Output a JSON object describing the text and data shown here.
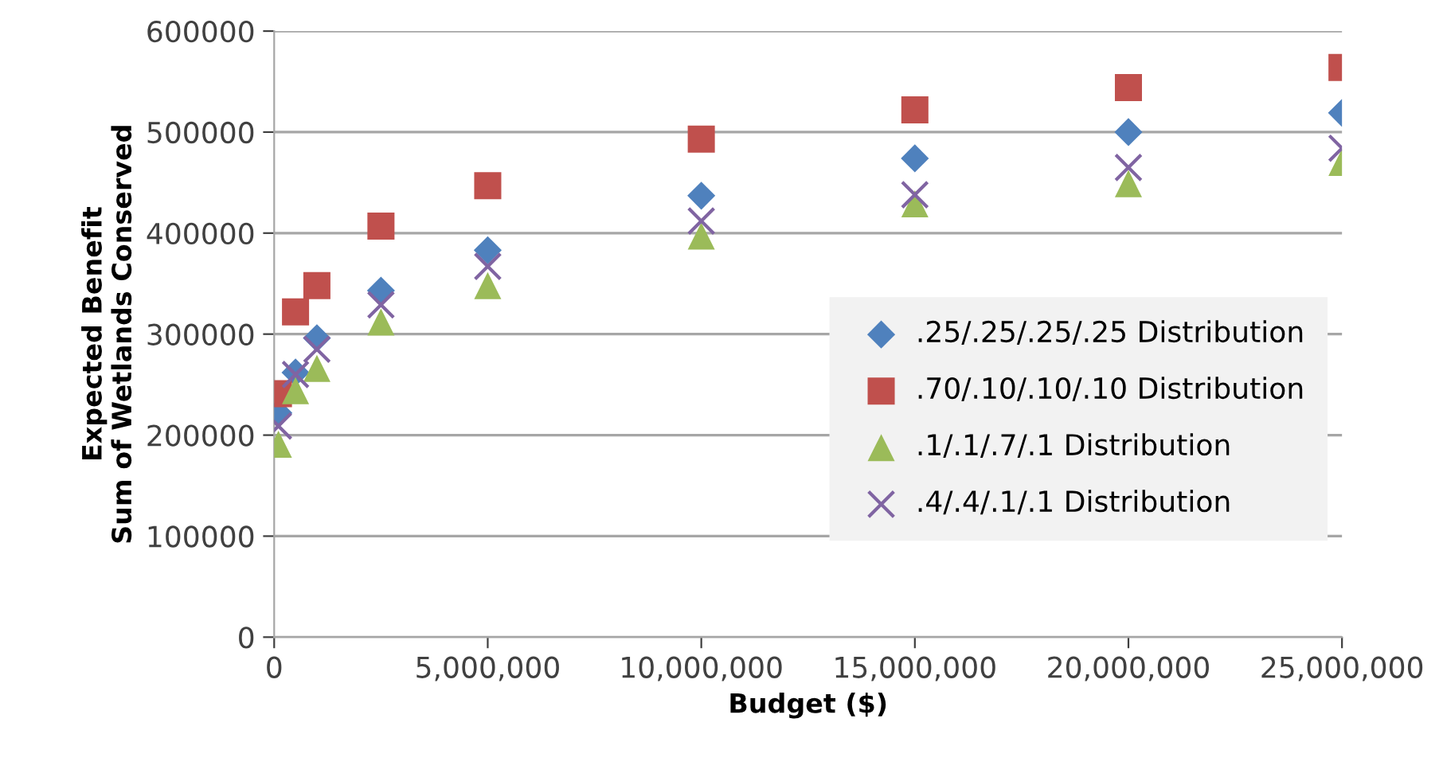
{
  "chart_data": {
    "type": "scatter",
    "xlabel": "Budget ($)",
    "ylabel": "Expected Benefit\nSum of Wetlands Conserved",
    "x": [
      100000,
      500000,
      1000000,
      2500000,
      5000000,
      10000000,
      15000000,
      20000000,
      25000000
    ],
    "series": [
      {
        "name": ".25/.25/.25/.25 Distribution",
        "color": "#4f81bd",
        "marker": "diamond",
        "values": [
          222000,
          262000,
          296000,
          343000,
          383000,
          437000,
          474000,
          500000,
          519000
        ]
      },
      {
        "name": ".70/.10/.10/.10 Distribution",
        "color": "#c0504d",
        "marker": "square",
        "values": [
          241000,
          322000,
          348000,
          407000,
          447000,
          493000,
          522000,
          544000,
          564000
        ]
      },
      {
        "name": ".1/.1/.7/.1 Distribution",
        "color": "#9bbb59",
        "marker": "triangle",
        "values": [
          191000,
          244000,
          266000,
          312000,
          348000,
          397000,
          429000,
          449000,
          470000
        ]
      },
      {
        "name": ".4/.4/.1/.1 Distribution",
        "color": "#8064a2",
        "marker": "cross",
        "values": [
          209000,
          260000,
          285000,
          329000,
          367000,
          412000,
          438000,
          465000,
          484000
        ]
      }
    ],
    "xlim": [
      0,
      25000000
    ],
    "ylim": [
      0,
      600000
    ],
    "xticks": [
      {
        "value": 0,
        "label": "0"
      },
      {
        "value": 5000000,
        "label": "5,000,000"
      },
      {
        "value": 10000000,
        "label": "10,000,000"
      },
      {
        "value": 15000000,
        "label": "15,000,000"
      },
      {
        "value": 20000000,
        "label": "20,000,000"
      },
      {
        "value": 25000000,
        "label": "25,000,000"
      }
    ],
    "yticks": [
      0,
      100000,
      200000,
      300000,
      400000,
      500000,
      600000
    ],
    "grid": "y",
    "legend": "right"
  }
}
